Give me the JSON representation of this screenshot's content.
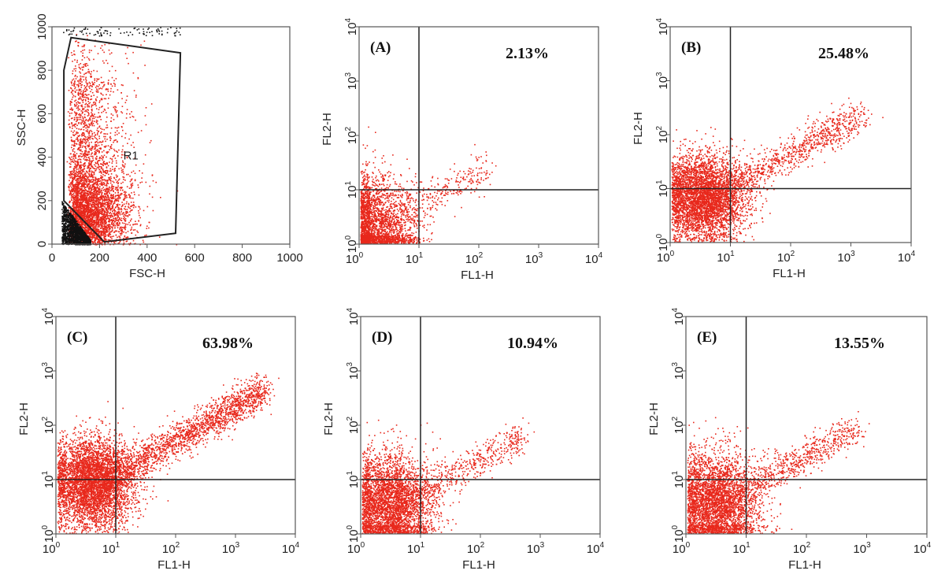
{
  "chart_data": [
    {
      "type": "scatter",
      "panel": "gate",
      "xlabel": "FSC-H",
      "ylabel": "SSC-H",
      "xlim": [
        0,
        1000
      ],
      "ylim": [
        0,
        1000
      ],
      "x_ticks": [
        "0",
        "200",
        "400",
        "600",
        "800",
        "1000"
      ],
      "y_ticks": [
        "0",
        "200",
        "400",
        "600",
        "800",
        "1000"
      ],
      "gate": {
        "name": "R1",
        "polygon": [
          [
            50,
            800
          ],
          [
            80,
            950
          ],
          [
            540,
            880
          ],
          [
            520,
            50
          ],
          [
            220,
            10
          ],
          [
            50,
            200
          ]
        ]
      },
      "colors": {
        "gated": "#e8281c",
        "ungated": "#111111",
        "gate_line": "#222222"
      }
    },
    {
      "type": "scatter",
      "panel": "(A)",
      "percentage": "2.13%",
      "xlabel": "FL1-H",
      "ylabel": "FL2-H",
      "scale": "log",
      "xlim": [
        1,
        10000
      ],
      "ylim": [
        1,
        10000
      ],
      "quadrant_x": 10,
      "quadrant_y": 10,
      "color": "#e8281c"
    },
    {
      "type": "scatter",
      "panel": "(B)",
      "percentage": "25.48%",
      "xlabel": "FL1-H",
      "ylabel": "FL2-H",
      "scale": "log",
      "xlim": [
        1,
        10000
      ],
      "ylim": [
        1,
        10000
      ],
      "quadrant_x": 10,
      "quadrant_y": 10,
      "color": "#e8281c"
    },
    {
      "type": "scatter",
      "panel": "(C)",
      "percentage": "63.98%",
      "xlabel": "FL1-H",
      "ylabel": "FL2-H",
      "scale": "log",
      "xlim": [
        1,
        10000
      ],
      "ylim": [
        1,
        10000
      ],
      "quadrant_x": 10,
      "quadrant_y": 10,
      "color": "#e8281c"
    },
    {
      "type": "scatter",
      "panel": "(D)",
      "percentage": "10.94%",
      "xlabel": "FL1-H",
      "ylabel": "FL2-H",
      "scale": "log",
      "xlim": [
        1,
        10000
      ],
      "ylim": [
        1,
        10000
      ],
      "quadrant_x": 10,
      "quadrant_y": 10,
      "color": "#e8281c"
    },
    {
      "type": "scatter",
      "panel": "(E)",
      "percentage": "13.55%",
      "xlabel": "FL1-H",
      "ylabel": "FL2-H",
      "scale": "log",
      "xlim": [
        1,
        10000
      ],
      "ylim": [
        1,
        10000
      ],
      "quadrant_x": 10,
      "quadrant_y": 10,
      "color": "#e8281c"
    }
  ],
  "log_tick_base": "10",
  "log_tick_exponents": [
    "0",
    "1",
    "2",
    "3",
    "4"
  ]
}
